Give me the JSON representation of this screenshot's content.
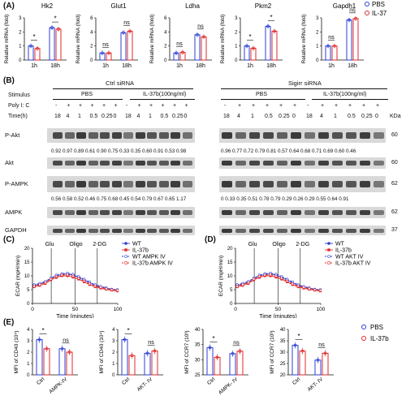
{
  "panels": {
    "A": "(A)",
    "B": "(B)",
    "C": "(C)",
    "D": "(D)",
    "E": "(E)"
  },
  "legendA": {
    "pbs": "PBS",
    "il37": "IL-37"
  },
  "panelA": {
    "ylabel": "Relative mRNA (fold)",
    "xticks": [
      "1h",
      "18h"
    ],
    "charts": [
      {
        "title": "Hk2",
        "yticks": [
          "0",
          "1",
          "2",
          "3"
        ],
        "sig1": "*",
        "sig2": "*",
        "pbs": [
          1.0,
          2.3
        ],
        "il": [
          0.82,
          2.2
        ]
      },
      {
        "title": "Glut1",
        "yticks": [
          "0",
          "2",
          "4",
          "6"
        ],
        "sig1": "ns",
        "sig2": "ns",
        "pbs": [
          1.0,
          3.9
        ],
        "il": [
          1.0,
          4.1
        ]
      },
      {
        "title": "Ldha",
        "yticks": [
          "0",
          "2",
          "4",
          "6"
        ],
        "sig1": "ns",
        "sig2": "ns",
        "pbs": [
          1.0,
          3.6
        ],
        "il": [
          1.1,
          3.3
        ]
      },
      {
        "title": "Pkm2",
        "yticks": [
          "0",
          "1",
          "2",
          "3"
        ],
        "sig1": "*",
        "sig2": "*",
        "pbs": [
          1.0,
          2.4
        ],
        "il": [
          0.84,
          2.05
        ]
      },
      {
        "title": "Gapdh1",
        "yticks": [
          "0",
          "1",
          "2",
          "3"
        ],
        "sig1": "ns",
        "sig2": "ns",
        "pbs": [
          1.0,
          2.85
        ],
        "il": [
          1.0,
          2.95
        ]
      }
    ]
  },
  "panelB": {
    "group_left": "Ctrl siRNA",
    "group_right": "Sigirr siRNA",
    "stimulus_label": "Stimulus",
    "pbs": "PBS",
    "il37b": "IL-37b(100ng/ml)",
    "polyic_label": "Poly I: C",
    "polyic_values": [
      "-",
      "+",
      "+",
      "+",
      "+",
      "+",
      "-",
      "+",
      "+",
      "+",
      "+",
      "+"
    ],
    "time_label": "Time(h)",
    "time_values": [
      "18",
      "4",
      "1",
      "0.5",
      "0.25",
      "0",
      "18",
      "4",
      "1",
      "0.5",
      "0.25",
      "0"
    ],
    "kda_label": "KDa",
    "rows": [
      {
        "name": "P-Akt",
        "kda": "60"
      },
      {
        "name": "Akt",
        "kda": "60"
      },
      {
        "name": "P-AMPK",
        "kda": "62"
      },
      {
        "name": "AMPK",
        "kda": "62"
      },
      {
        "name": "GAPDH",
        "kda": "37"
      }
    ],
    "pakt_left_nums": "0.92 0.97 0.89 0.61 0.90 0.75 0.33 0.35 0.60 0.91 0.53 0.98",
    "pakt_right_nums": "0.96 0.77 0.72 0.79 0.81 0.57 0.64 0.68 0.71 0.69 0.60 0.46",
    "pampk_left_nums": "0.56 0.58 0.52 0.46 0.75 0.68 0.45 0.54 0.79 0.67 0.65 1.17",
    "pampk_right_nums": "0  0.33 0.35 0.51 0.78 0.79 0.29 0.26 0.29 0.55 0.64 0.91"
  },
  "panelC": {
    "ylabel": "ECAR (mpH/min)",
    "xlabel": "Time (minutes)",
    "xticks": [
      "0",
      "50",
      "100"
    ],
    "yticks": [
      "0",
      "5",
      "10",
      "15",
      "20"
    ],
    "markers": [
      "Glu",
      "Oligo",
      "2-DG"
    ],
    "legend": [
      "WT",
      "IL-37b",
      "WT AMPK IV",
      "IL-37b AMPK IV"
    ]
  },
  "panelD": {
    "ylabel": "ECAR (mpH/min)",
    "xlabel": "Time (minutes)",
    "xticks": [
      "0",
      "50",
      "100"
    ],
    "yticks": [
      "0",
      "5",
      "10",
      "15",
      "20"
    ],
    "markers": [
      "Glu",
      "Oligo",
      "2-DG"
    ],
    "legend": [
      "WT",
      "IL-37b",
      "WT AKT IV",
      "IL-37b AKT IV"
    ]
  },
  "panelE": {
    "legend": {
      "pbs": "PBS",
      "il37b": "IL-37b"
    },
    "charts": [
      {
        "ylabel": "MFI of CD40 (10⁴)",
        "yticks": [
          "0",
          "1",
          "2",
          "3",
          "4"
        ],
        "x": [
          "Ctrl",
          "AMPK-IV"
        ],
        "sig": [
          "*",
          "ns"
        ],
        "pbs": [
          3.1,
          2.3
        ],
        "il": [
          2.3,
          2.0
        ]
      },
      {
        "ylabel": "MFI of CD40 (10⁴)",
        "yticks": [
          "0",
          "1",
          "2",
          "3",
          "4"
        ],
        "x": [
          "Ctrl",
          "AKT- IV"
        ],
        "sig": [
          "*",
          "ns"
        ],
        "pbs": [
          3.1,
          1.9
        ],
        "il": [
          1.7,
          2.1
        ]
      },
      {
        "ylabel": "MFI of CCR7 (10³)",
        "yticks": [
          "25",
          "30",
          "35",
          "40"
        ],
        "x": [
          "Ctrl",
          "AMPK- IV"
        ],
        "sig": [
          "*",
          "ns"
        ],
        "pbs": [
          34.0,
          32.0
        ],
        "il": [
          30.8,
          32.8
        ]
      },
      {
        "ylabel": "MFI of CCR7 (10³)",
        "yticks": [
          "20",
          "25",
          "30",
          "35",
          "40"
        ],
        "x": [
          "Ctrl",
          "AKT- IV"
        ],
        "sig": [
          "*",
          "ns"
        ],
        "pbs": [
          33.0,
          26.5
        ],
        "il": [
          30.5,
          29.5
        ]
      }
    ]
  },
  "colors": {
    "pbs": "#2b3fd6",
    "il": "#e02a2a",
    "blot": "#3a3a3a"
  }
}
